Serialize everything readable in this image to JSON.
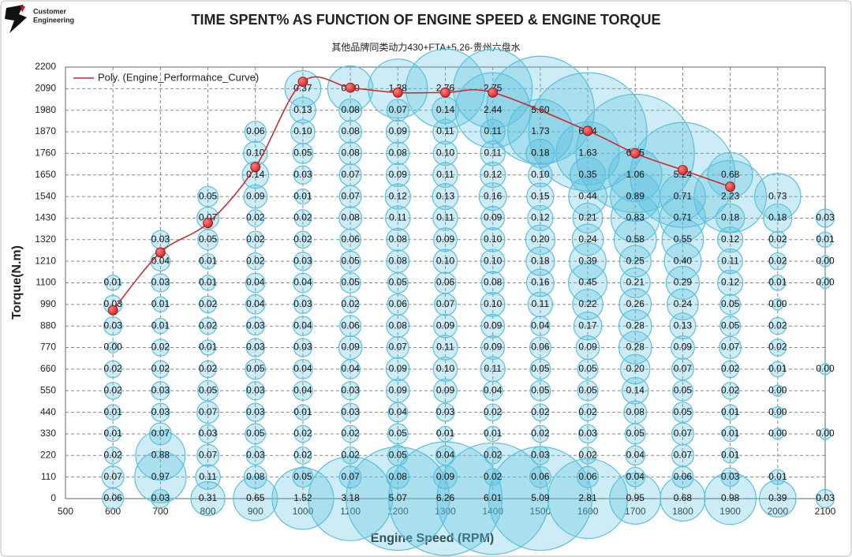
{
  "logo": [
    "Customer",
    "Engineering"
  ],
  "chart_data": {
    "type": "bubble",
    "title": "TIME SPENT% AS FUNCTION OF ENGINE SPEED & ENGINE TORQUE",
    "subtitle": "其他品牌同类动力430+FTA+5.26-贵州六盘水",
    "x_label": "Engine Speed (RPM)",
    "y_label": "Torque(N.m)",
    "xlim": [
      500,
      2100
    ],
    "xticks": [
      500,
      600,
      700,
      800,
      900,
      1000,
      1100,
      1200,
      1300,
      1400,
      1500,
      1600,
      1700,
      1800,
      1900,
      2000,
      2100
    ],
    "ylim": [
      0,
      2200
    ],
    "yticks": [
      0,
      110,
      220,
      330,
      440,
      550,
      660,
      770,
      880,
      990,
      1100,
      1210,
      1320,
      1430,
      1540,
      1650,
      1760,
      1870,
      1980,
      2090,
      2200
    ],
    "grid": true,
    "legend": "upper left",
    "bubbles": {
      "color": "#5bc0de",
      "x": [
        600,
        700,
        800,
        900,
        1000,
        1100,
        1200,
        1300,
        1400,
        1500,
        1600,
        1700,
        1800,
        1900,
        2000,
        2100
      ],
      "y": [
        0,
        110,
        220,
        330,
        440,
        550,
        660,
        770,
        880,
        990,
        1100,
        1210,
        1320,
        1430,
        1540,
        1650,
        1760,
        1870,
        1980,
        2090
      ],
      "values": [
        [
          0.06,
          0.03,
          0.31,
          0.65,
          1.52,
          3.18,
          5.07,
          6.26,
          6.01,
          5.09,
          2.81,
          0.95,
          0.68,
          0.98,
          0.39,
          0.03
        ],
        [
          0.07,
          0.97,
          0.11,
          0.08,
          0.05,
          0.07,
          0.08,
          0.09,
          0.02,
          0.06,
          0.06,
          0.04,
          0.06,
          0.03,
          0.01,
          null
        ],
        [
          0.02,
          0.88,
          0.07,
          0.03,
          0.02,
          0.02,
          0.05,
          0.04,
          0.02,
          0.03,
          0.02,
          0.04,
          0.07,
          0.01,
          null,
          null
        ],
        [
          0.01,
          0.07,
          0.03,
          0.05,
          0.02,
          0.02,
          0.05,
          0.01,
          0.01,
          0.02,
          0.03,
          0.05,
          0.07,
          0.01,
          0,
          0
        ],
        [
          0.01,
          0.03,
          0.07,
          0.03,
          0.01,
          0.03,
          0.04,
          0.03,
          0.02,
          0.02,
          0.02,
          0.08,
          0.05,
          0.01,
          0,
          null
        ],
        [
          0.02,
          0.03,
          0.05,
          0.03,
          0.04,
          0.03,
          0.09,
          0.09,
          0.04,
          0.05,
          0.05,
          0.14,
          0.05,
          0.02,
          0,
          null
        ],
        [
          0.02,
          0.02,
          0.02,
          0.05,
          0.04,
          0.04,
          0.09,
          0.1,
          0.11,
          0.05,
          0.05,
          0.2,
          0.07,
          0.02,
          0.01,
          0
        ],
        [
          0,
          0.02,
          0.01,
          0.03,
          0.03,
          0.09,
          0.07,
          0.11,
          0.09,
          0.06,
          0.09,
          0.28,
          0.09,
          0.07,
          0.02,
          null
        ],
        [
          0.03,
          0.01,
          0.02,
          0.03,
          0.04,
          0.06,
          0.08,
          0.09,
          0.09,
          0.04,
          0.17,
          0.28,
          0.13,
          0.05,
          0.02,
          null
        ],
        [
          0.03,
          0.01,
          0.02,
          0.04,
          0.03,
          0.02,
          0.06,
          0.07,
          0.1,
          0.11,
          0.22,
          0.26,
          0.24,
          0.05,
          0,
          null
        ],
        [
          0.01,
          0.03,
          0.01,
          0.04,
          0.04,
          0.05,
          0.05,
          0.06,
          0.08,
          0.16,
          0.45,
          0.21,
          0.29,
          0.12,
          0.01,
          0
        ],
        [
          null,
          0.04,
          0.01,
          0.02,
          0.03,
          0.05,
          0.08,
          0.1,
          0.1,
          0.18,
          0.39,
          0.25,
          0.4,
          0.11,
          0.02,
          0
        ],
        [
          null,
          0.03,
          0.05,
          0.02,
          0.02,
          0.06,
          0.08,
          0.09,
          0.1,
          0.2,
          0.24,
          0.58,
          0.55,
          0.12,
          0.02,
          0.01
        ],
        [
          null,
          null,
          0.07,
          0.02,
          0.02,
          0.08,
          0.11,
          0.11,
          0.09,
          0.12,
          0.21,
          0.83,
          0.71,
          0.18,
          0.18,
          0.03
        ],
        [
          null,
          null,
          0.05,
          0.09,
          0.01,
          0.07,
          0.12,
          0.13,
          0.16,
          0.15,
          0.44,
          0.89,
          0.71,
          2.23,
          0.73,
          null
        ],
        [
          null,
          null,
          null,
          0.14,
          0.03,
          0.07,
          0.09,
          0.11,
          0.12,
          0.1,
          0.35,
          1.06,
          5.24,
          0.68,
          null,
          null
        ],
        [
          null,
          null,
          null,
          0.1,
          0.05,
          0.08,
          0.08,
          0.1,
          0.11,
          0.18,
          1.63,
          6.85,
          null,
          null,
          null,
          null
        ],
        [
          null,
          null,
          null,
          0.06,
          0.1,
          0.08,
          0.09,
          0.11,
          0.11,
          1.73,
          6.84,
          null,
          null,
          null,
          null,
          null
        ],
        [
          null,
          null,
          null,
          null,
          0.13,
          0.08,
          0.07,
          0.14,
          2.44,
          5.6,
          null,
          null,
          null,
          null,
          null,
          null
        ],
        [
          null,
          null,
          null,
          null,
          0.37,
          0.7,
          1.38,
          2.76,
          2.75,
          null,
          null,
          null,
          null,
          null,
          null,
          null
        ]
      ],
      "value_labels": [
        [
          "0.06",
          "0.03",
          "0.31",
          "0.65",
          "1.52",
          "3.18",
          "5.07",
          "6.26",
          "6.01",
          "5.09",
          "2.81",
          "0.95",
          "0.68",
          "0.98",
          "0.39",
          "0.03"
        ],
        [
          "0.07",
          "0.97",
          "0.11",
          "0.08",
          "0.05",
          "0.07",
          "0.08",
          "0.09",
          "0.02",
          "0.06",
          "0.06",
          "0.04",
          "0.06",
          "0.03",
          "0.01",
          null
        ],
        [
          "0.02",
          "0.88",
          "0.07",
          "0.03",
          "0.02",
          "0.02",
          "0.05",
          "0.04",
          "0.02",
          "0.03",
          "0.02",
          "0.04",
          "0.07",
          "0.01",
          null,
          null
        ],
        [
          "0.01",
          "0.07",
          "0.03",
          "0.05",
          "0.02",
          "0.02",
          "0.05",
          "0.01",
          "0.01",
          "0.02",
          "0.03",
          "0.05",
          "0.07",
          "0.01",
          "0.00",
          "0.00"
        ],
        [
          "0.01",
          "0.03",
          "0.07",
          "0.03",
          "0.01",
          "0.03",
          "0.04",
          "0.03",
          "0.02",
          "0.02",
          "0.02",
          "0.08",
          "0.05",
          "0.01",
          "0.00",
          null
        ],
        [
          "0.02",
          "0.03",
          "0.05",
          "0.03",
          "0.04",
          "0.03",
          "0.09",
          "0.09",
          "0.04",
          "0.05",
          "0.05",
          "0.14",
          "0.05",
          "0.02",
          "0.00",
          null
        ],
        [
          "0.02",
          "0.02",
          "0.02",
          "0.05",
          "0.04",
          "0.04",
          "0.09",
          "0.10",
          "0.11",
          "0.05",
          "0.05",
          "0.20",
          "0.07",
          "0.02",
          "0.01",
          "0.00"
        ],
        [
          "0.00",
          "0.02",
          "0.01",
          "0.03",
          "0.03",
          "0.09",
          "0.07",
          "0.11",
          "0.09",
          "0.06",
          "0.09",
          "0.28",
          "0.09",
          "0.07",
          "0.02",
          null
        ],
        [
          "0.03",
          "0.01",
          "0.02",
          "0.03",
          "0.04",
          "0.06",
          "0.08",
          "0.09",
          "0.09",
          "0.04",
          "0.17",
          "0.28",
          "0.13",
          "0.05",
          "0.02",
          null
        ],
        [
          "0.03",
          "0.01",
          "0.02",
          "0.04",
          "0.03",
          "0.02",
          "0.06",
          "0.07",
          "0.10",
          "0.11",
          "0.22",
          "0.26",
          "0.24",
          "0.05",
          "0.00",
          null
        ],
        [
          "0.01",
          "0.03",
          "0.01",
          "0.04",
          "0.04",
          "0.05",
          "0.05",
          "0.06",
          "0.08",
          "0.16",
          "0.45",
          "0.21",
          "0.29",
          "0.12",
          "0.01",
          "0.00"
        ],
        [
          null,
          "0.04",
          "0.01",
          "0.02",
          "0.03",
          "0.05",
          "0.08",
          "0.10",
          "0.10",
          "0.18",
          "0.39",
          "0.25",
          "0.40",
          "0.11",
          "0.02",
          "0.00"
        ],
        [
          null,
          "0.03",
          "0.05",
          "0.02",
          "0.02",
          "0.06",
          "0.08",
          "0.09",
          "0.10",
          "0.20",
          "0.24",
          "0.58",
          "0.55",
          "0.12",
          "0.02",
          "0.01"
        ],
        [
          null,
          null,
          "0.07",
          "0.02",
          "0.02",
          "0.08",
          "0.11",
          "0.11",
          "0.09",
          "0.12",
          "0.21",
          "0.83",
          "0.71",
          "0.18",
          "0.18",
          "0.03"
        ],
        [
          null,
          null,
          "0.05",
          "0.09",
          "0.01",
          "0.07",
          "0.12",
          "0.13",
          "0.16",
          "0.15",
          "0.44",
          "0.89",
          "0.71",
          "2.23",
          "0.73",
          null
        ],
        [
          null,
          null,
          null,
          "0.14",
          "0.03",
          "0.07",
          "0.09",
          "0.11",
          "0.12",
          "0.10",
          "0.35",
          "1.06",
          "5.24",
          "0.68",
          null,
          null
        ],
        [
          null,
          null,
          null,
          "0.10",
          "0.05",
          "0.08",
          "0.08",
          "0.10",
          "0.11",
          "0.18",
          "1.63",
          "6.85",
          null,
          null,
          null,
          null
        ],
        [
          null,
          null,
          null,
          "0.06",
          "0.10",
          "0.08",
          "0.09",
          "0.11",
          "0.11",
          "1.73",
          "6.84",
          null,
          null,
          null,
          null,
          null
        ],
        [
          null,
          null,
          null,
          null,
          "0.13",
          "0.08",
          "0.07",
          "0.14",
          "2.44",
          "5.60",
          null,
          null,
          null,
          null,
          null,
          null
        ],
        [
          null,
          null,
          null,
          null,
          "0.37",
          "0.70",
          "1.38",
          "2.76",
          "2.75",
          null,
          null,
          null,
          null,
          null,
          null,
          null
        ]
      ]
    },
    "trend": {
      "name": "Poly. (Engine_Performance_Curve)",
      "color": "#d42020",
      "x": [
        600,
        700,
        800,
        900,
        1000,
        1100,
        1200,
        1300,
        1400,
        1600,
        1700,
        1800,
        1900
      ],
      "y": [
        960,
        1255,
        1405,
        1690,
        2125,
        2095,
        2070,
        2070,
        2070,
        1875,
        1760,
        1675,
        1590
      ]
    }
  }
}
